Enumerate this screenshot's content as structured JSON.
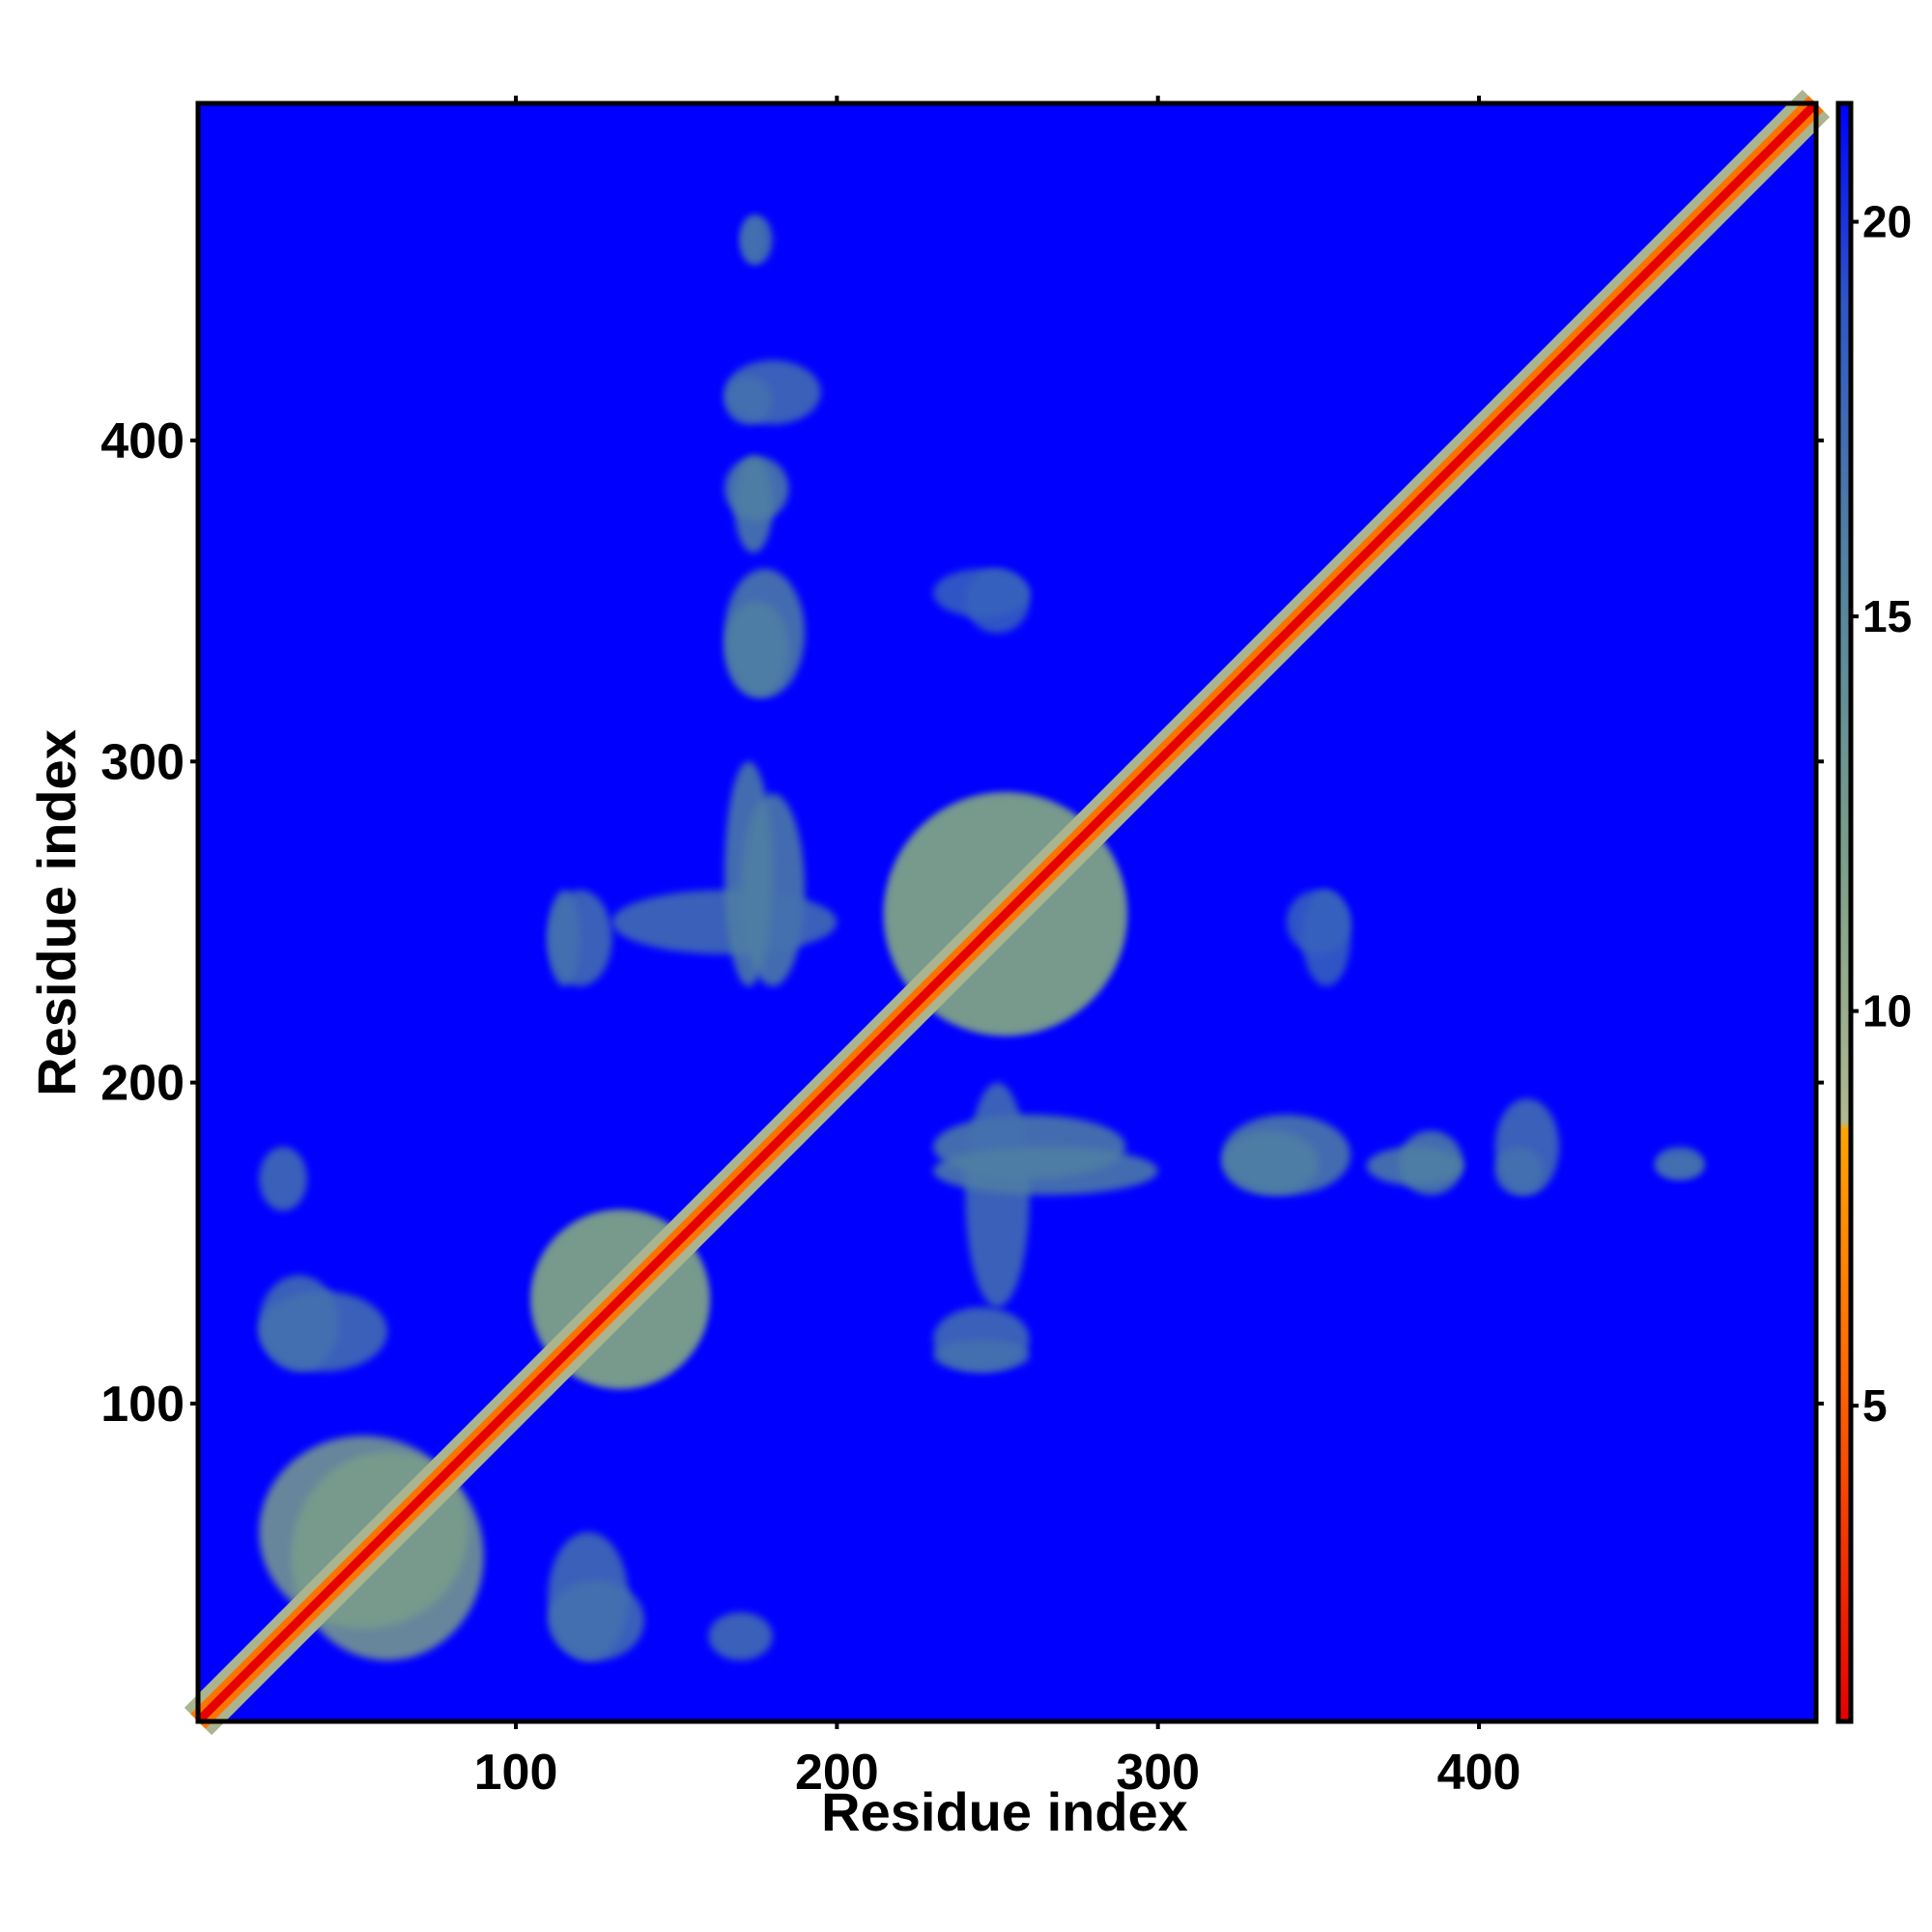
{
  "chart_data": {
    "type": "heatmap",
    "title": "",
    "xlabel": "Residue index",
    "ylabel": "Residue index",
    "xlim": [
      1,
      505
    ],
    "ylim": [
      1,
      505
    ],
    "xticks": [
      100,
      200,
      300,
      400
    ],
    "yticks": [
      100,
      200,
      300,
      400
    ],
    "background_color": "#0000ff",
    "colorbar": {
      "range": [
        1,
        21.5
      ],
      "ticks": [
        5,
        10,
        15,
        20
      ],
      "stops": [
        {
          "value": 1,
          "color": "#e60000"
        },
        {
          "value": 5.5,
          "color": "#ff6a00"
        },
        {
          "value": 8.5,
          "color": "#ffa500"
        },
        {
          "value": 8.6,
          "color": "#b0b890"
        },
        {
          "value": 12,
          "color": "#7a9e8a"
        },
        {
          "value": 16,
          "color": "#4f7fa3"
        },
        {
          "value": 19,
          "color": "#2e56c8"
        },
        {
          "value": 21.5,
          "color": "#0000ff"
        }
      ]
    },
    "diagonal": {
      "value": 1,
      "band_value": 6,
      "halo_value": 9
    },
    "contact_regions": [
      {
        "x": [
          20,
          85
        ],
        "y": [
          30,
          90
        ],
        "value": 12
      },
      {
        "x": [
          105,
          160
        ],
        "y": [
          105,
          160
        ],
        "value": 12
      },
      {
        "x": [
          215,
          290
        ],
        "y": [
          215,
          290
        ],
        "value": 12
      },
      {
        "x": [
          160,
          180
        ],
        "y": [
          20,
          35
        ],
        "value": 17
      },
      {
        "x": [
          110,
          140
        ],
        "y": [
          20,
          45
        ],
        "value": 17
      },
      {
        "x": [
          20,
          60
        ],
        "y": [
          110,
          135
        ],
        "value": 17
      },
      {
        "x": [
          170,
          190
        ],
        "y": [
          230,
          290
        ],
        "value": 16
      },
      {
        "x": [
          110,
          130
        ],
        "y": [
          230,
          260
        ],
        "value": 17
      },
      {
        "x": [
          130,
          200
        ],
        "y": [
          240,
          260
        ],
        "value": 17
      },
      {
        "x": [
          165,
          190
        ],
        "y": [
          320,
          360
        ],
        "value": 16
      },
      {
        "x": [
          165,
          185
        ],
        "y": [
          375,
          395
        ],
        "value": 16
      },
      {
        "x": [
          165,
          195
        ],
        "y": [
          405,
          425
        ],
        "value": 17
      },
      {
        "x": [
          170,
          180
        ],
        "y": [
          455,
          470
        ],
        "value": 17
      },
      {
        "x": [
          230,
          300
        ],
        "y": [
          165,
          180
        ],
        "value": 16
      },
      {
        "x": [
          320,
          350
        ],
        "y": [
          165,
          185
        ],
        "value": 16
      },
      {
        "x": [
          365,
          395
        ],
        "y": [
          168,
          180
        ],
        "value": 16
      },
      {
        "x": [
          405,
          420
        ],
        "y": [
          165,
          180
        ],
        "value": 17
      },
      {
        "x": [
          455,
          470
        ],
        "y": [
          170,
          178
        ],
        "value": 17
      },
      {
        "x": [
          230,
          260
        ],
        "y": [
          110,
          120
        ],
        "value": 17
      },
      {
        "x": [
          340,
          360
        ],
        "y": [
          240,
          260
        ],
        "value": 18
      },
      {
        "x": [
          230,
          260
        ],
        "y": [
          345,
          360
        ],
        "value": 18
      }
    ]
  }
}
